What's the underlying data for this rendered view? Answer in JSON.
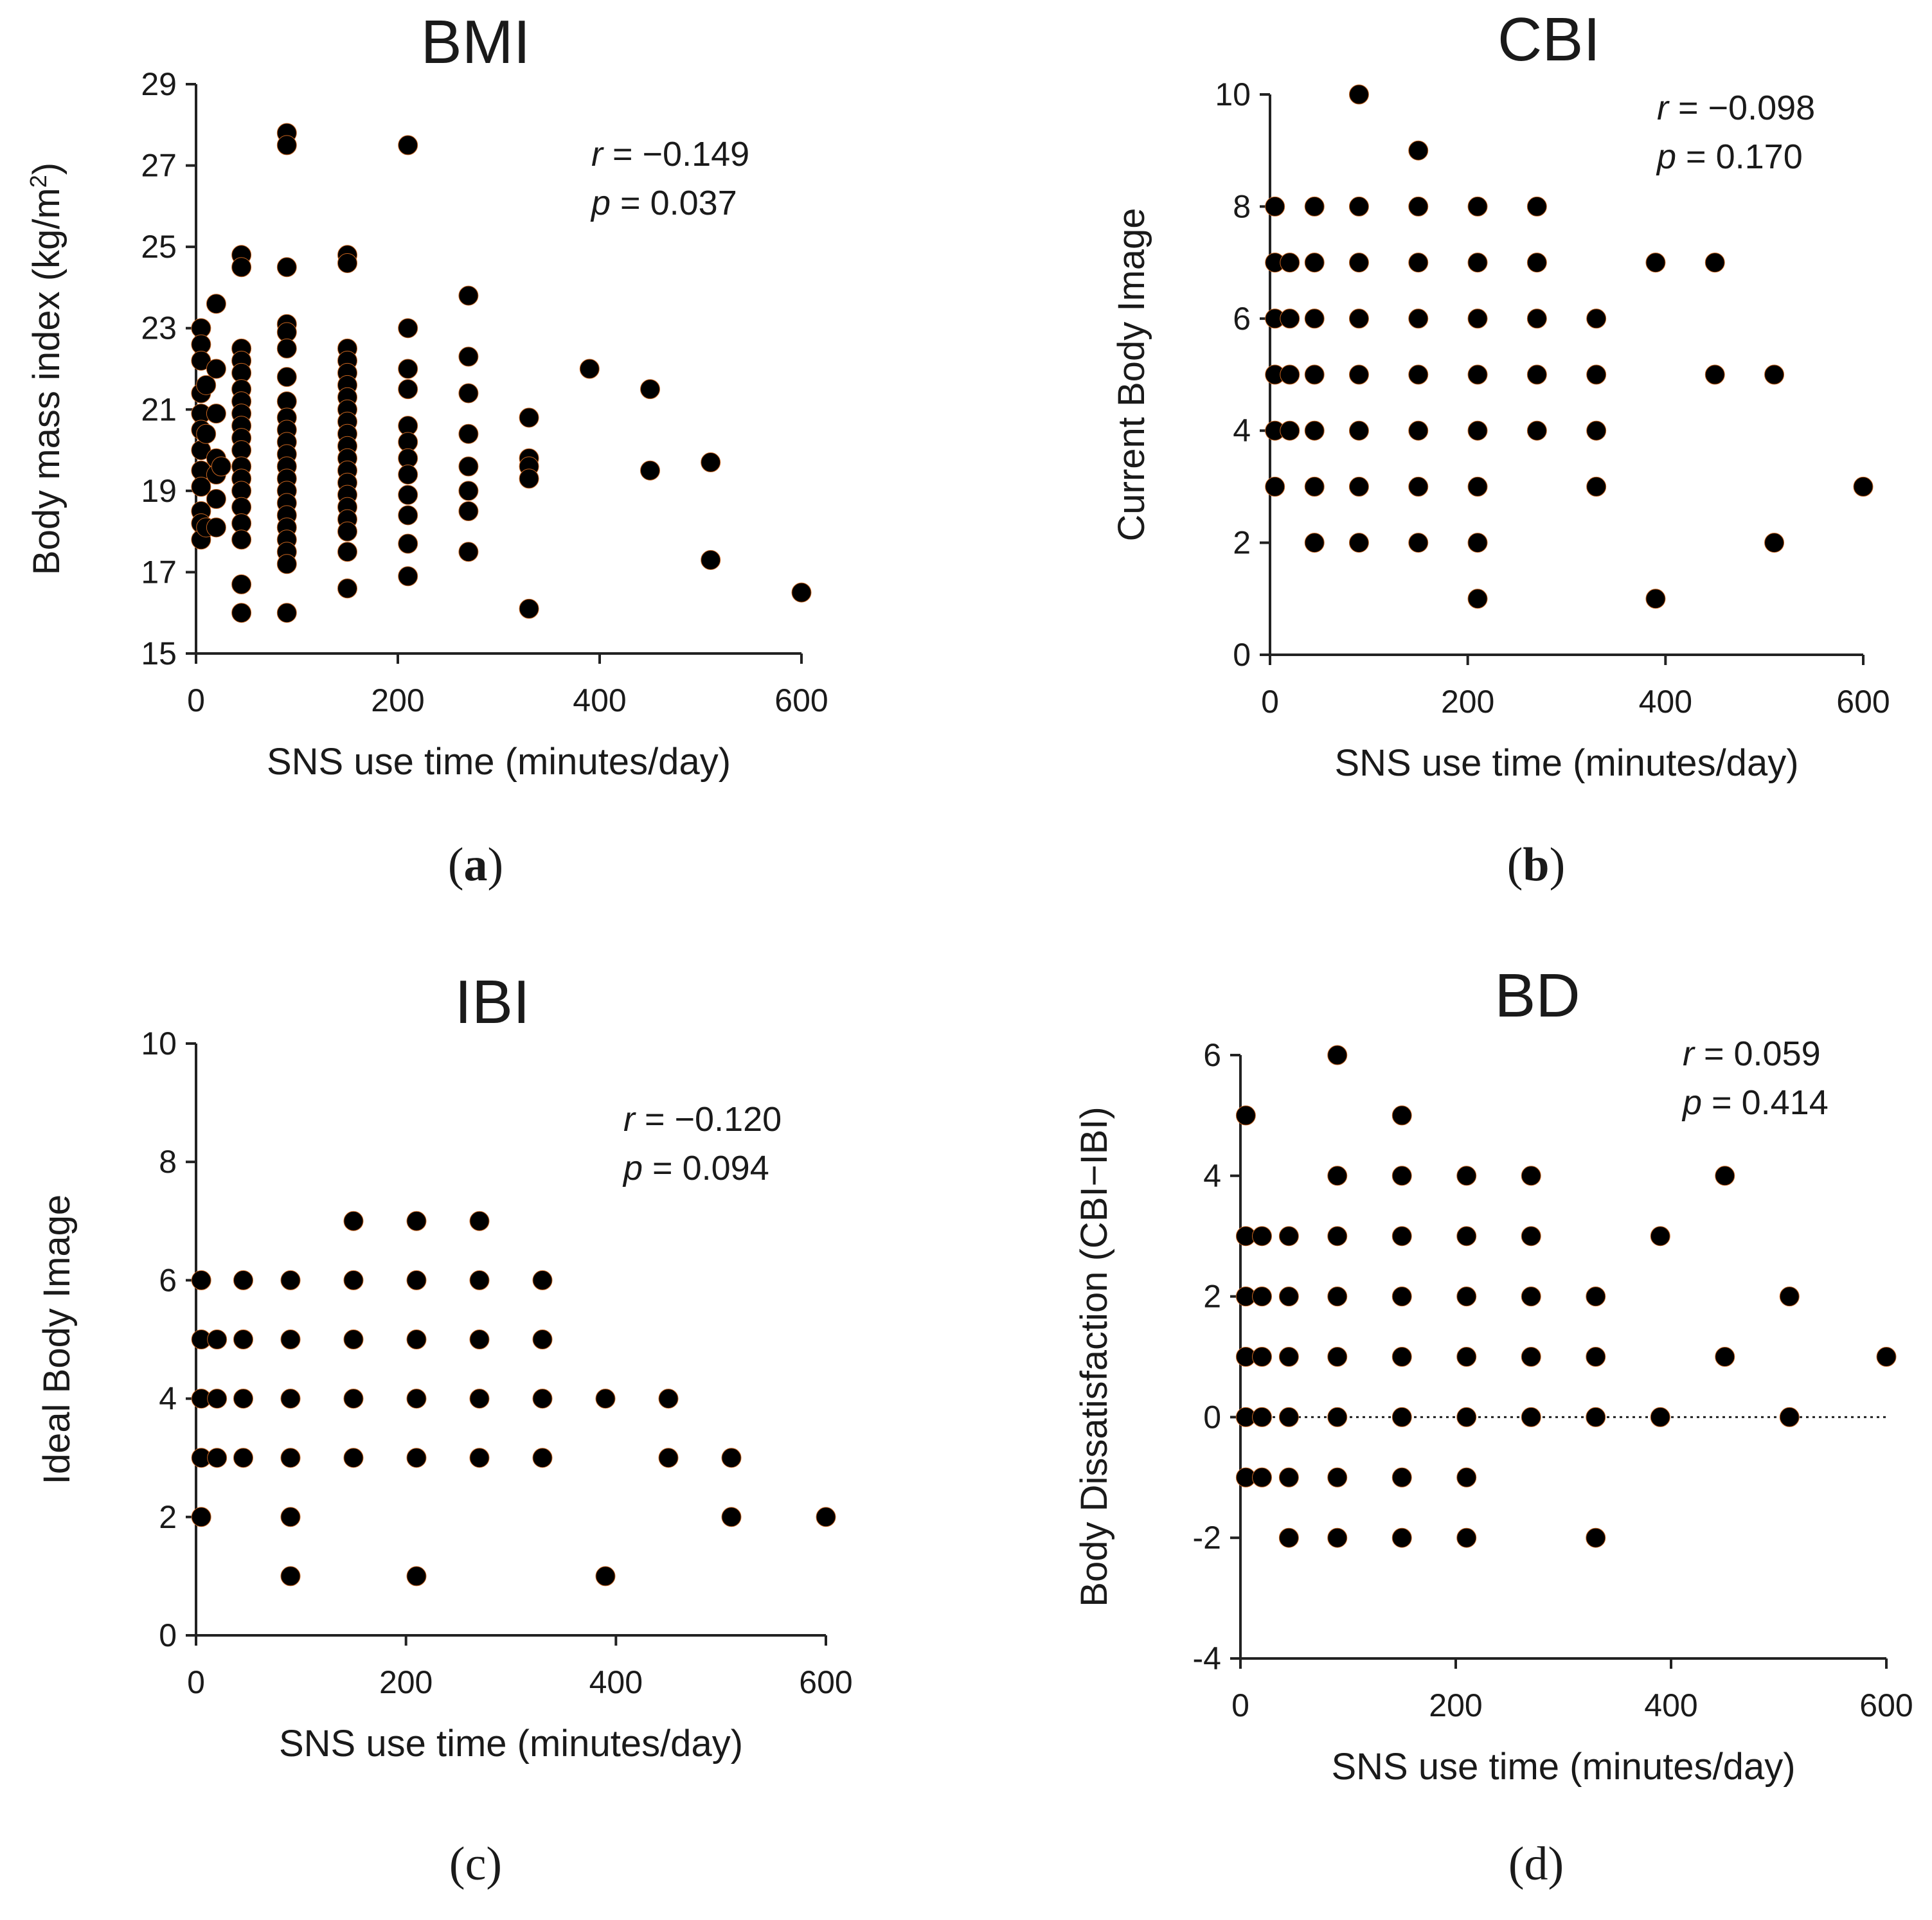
{
  "chart_data": [
    {
      "id": "a",
      "type": "scatter",
      "title": "BMI",
      "xlabel": "SNS use time (minutes/day)",
      "ylabel_parts": [
        "Body mass index (kg/m",
        "2",
        ")"
      ],
      "xlim": [
        0,
        600
      ],
      "ylim": [
        15,
        29
      ],
      "xticks": [
        0,
        200,
        400,
        600
      ],
      "yticks": [
        15,
        17,
        19,
        21,
        23,
        25,
        27,
        29
      ],
      "stat": {
        "r_symbol": "r",
        "r_value": " = −0.149",
        "p_symbol": "p",
        "p_value": " = 0.037"
      },
      "caption": "(a)",
      "caption_letter": "a",
      "zero_line": false,
      "points": [
        [
          5,
          23.0
        ],
        [
          5,
          22.6
        ],
        [
          5,
          22.2
        ],
        [
          5,
          21.4
        ],
        [
          5,
          20.9
        ],
        [
          5,
          20.5
        ],
        [
          5,
          20.0
        ],
        [
          5,
          19.5
        ],
        [
          5,
          19.1
        ],
        [
          5,
          18.5
        ],
        [
          5,
          18.2
        ],
        [
          5,
          17.8
        ],
        [
          10,
          21.6
        ],
        [
          10,
          20.4
        ],
        [
          10,
          18.1
        ],
        [
          20,
          23.6
        ],
        [
          20,
          22.0
        ],
        [
          20,
          20.9
        ],
        [
          20,
          19.8
        ],
        [
          20,
          19.4
        ],
        [
          20,
          18.8
        ],
        [
          20,
          18.1
        ],
        [
          25,
          19.6
        ],
        [
          45,
          24.8
        ],
        [
          45,
          24.5
        ],
        [
          45,
          22.5
        ],
        [
          45,
          22.2
        ],
        [
          45,
          21.9
        ],
        [
          45,
          21.5
        ],
        [
          45,
          21.2
        ],
        [
          45,
          20.9
        ],
        [
          45,
          20.6
        ],
        [
          45,
          20.3
        ],
        [
          45,
          20.0
        ],
        [
          45,
          19.6
        ],
        [
          45,
          19.3
        ],
        [
          45,
          19.0
        ],
        [
          45,
          18.6
        ],
        [
          45,
          18.2
        ],
        [
          45,
          17.8
        ],
        [
          45,
          16.7
        ],
        [
          45,
          16.0
        ],
        [
          90,
          27.8
        ],
        [
          90,
          27.5
        ],
        [
          90,
          24.5
        ],
        [
          90,
          23.1
        ],
        [
          90,
          22.9
        ],
        [
          90,
          22.5
        ],
        [
          90,
          21.8
        ],
        [
          90,
          21.2
        ],
        [
          90,
          20.8
        ],
        [
          90,
          20.5
        ],
        [
          90,
          20.2
        ],
        [
          90,
          19.9
        ],
        [
          90,
          19.6
        ],
        [
          90,
          19.3
        ],
        [
          90,
          19.0
        ],
        [
          90,
          18.7
        ],
        [
          90,
          18.4
        ],
        [
          90,
          18.1
        ],
        [
          90,
          17.8
        ],
        [
          90,
          17.5
        ],
        [
          90,
          17.2
        ],
        [
          90,
          16.0
        ],
        [
          150,
          24.8
        ],
        [
          150,
          24.6
        ],
        [
          150,
          22.5
        ],
        [
          150,
          22.2
        ],
        [
          150,
          21.9
        ],
        [
          150,
          21.6
        ],
        [
          150,
          21.3
        ],
        [
          150,
          21.0
        ],
        [
          150,
          20.7
        ],
        [
          150,
          20.4
        ],
        [
          150,
          20.1
        ],
        [
          150,
          19.8
        ],
        [
          150,
          19.5
        ],
        [
          150,
          19.2
        ],
        [
          150,
          18.9
        ],
        [
          150,
          18.6
        ],
        [
          150,
          18.3
        ],
        [
          150,
          18.0
        ],
        [
          150,
          17.5
        ],
        [
          150,
          16.6
        ],
        [
          210,
          27.5
        ],
        [
          210,
          23.0
        ],
        [
          210,
          22.0
        ],
        [
          210,
          21.5
        ],
        [
          210,
          20.6
        ],
        [
          210,
          20.2
        ],
        [
          210,
          19.8
        ],
        [
          210,
          19.4
        ],
        [
          210,
          18.9
        ],
        [
          210,
          18.4
        ],
        [
          210,
          17.7
        ],
        [
          210,
          16.9
        ],
        [
          270,
          23.8
        ],
        [
          270,
          22.3
        ],
        [
          270,
          21.4
        ],
        [
          270,
          20.4
        ],
        [
          270,
          19.6
        ],
        [
          270,
          19.0
        ],
        [
          270,
          18.5
        ],
        [
          270,
          17.5
        ],
        [
          330,
          20.8
        ],
        [
          330,
          19.8
        ],
        [
          330,
          19.6
        ],
        [
          330,
          19.3
        ],
        [
          330,
          16.1
        ],
        [
          390,
          22.0
        ],
        [
          450,
          21.5
        ],
        [
          450,
          19.5
        ],
        [
          510,
          19.7
        ],
        [
          510,
          17.3
        ],
        [
          600,
          16.5
        ]
      ]
    },
    {
      "id": "b",
      "type": "scatter",
      "title": "CBI",
      "xlabel": "SNS use time (minutes/day)",
      "ylabel_parts": [
        "Current Body Image"
      ],
      "xlim": [
        0,
        600
      ],
      "ylim": [
        0,
        10
      ],
      "xticks": [
        0,
        200,
        400,
        600
      ],
      "yticks": [
        0,
        2,
        4,
        6,
        8,
        10
      ],
      "stat": {
        "r_symbol": "r",
        "r_value": " = −0.098",
        "p_symbol": "p",
        "p_value": " = 0.170"
      },
      "caption": "(b)",
      "caption_letter": "b",
      "zero_line": false,
      "points": [
        [
          5,
          8
        ],
        [
          5,
          7
        ],
        [
          5,
          6
        ],
        [
          5,
          5
        ],
        [
          5,
          4
        ],
        [
          5,
          3
        ],
        [
          20,
          7
        ],
        [
          20,
          6
        ],
        [
          20,
          5
        ],
        [
          20,
          4
        ],
        [
          45,
          8
        ],
        [
          45,
          7
        ],
        [
          45,
          6
        ],
        [
          45,
          5
        ],
        [
          45,
          4
        ],
        [
          45,
          3
        ],
        [
          45,
          2
        ],
        [
          90,
          10
        ],
        [
          90,
          8
        ],
        [
          90,
          7
        ],
        [
          90,
          6
        ],
        [
          90,
          5
        ],
        [
          90,
          4
        ],
        [
          90,
          3
        ],
        [
          90,
          2
        ],
        [
          150,
          9
        ],
        [
          150,
          8
        ],
        [
          150,
          7
        ],
        [
          150,
          6
        ],
        [
          150,
          5
        ],
        [
          150,
          4
        ],
        [
          150,
          3
        ],
        [
          150,
          2
        ],
        [
          210,
          8
        ],
        [
          210,
          7
        ],
        [
          210,
          6
        ],
        [
          210,
          5
        ],
        [
          210,
          4
        ],
        [
          210,
          3
        ],
        [
          210,
          2
        ],
        [
          210,
          1
        ],
        [
          270,
          8
        ],
        [
          270,
          7
        ],
        [
          270,
          6
        ],
        [
          270,
          5
        ],
        [
          270,
          4
        ],
        [
          330,
          6
        ],
        [
          330,
          5
        ],
        [
          330,
          4
        ],
        [
          330,
          3
        ],
        [
          390,
          7
        ],
        [
          390,
          1
        ],
        [
          450,
          7
        ],
        [
          450,
          5
        ],
        [
          510,
          5
        ],
        [
          510,
          2
        ],
        [
          600,
          3
        ]
      ]
    },
    {
      "id": "c",
      "type": "scatter",
      "title": "IBI",
      "xlabel": "SNS use time (minutes/day)",
      "ylabel_parts": [
        "Ideal Body Image"
      ],
      "xlim": [
        0,
        600
      ],
      "ylim": [
        0,
        10
      ],
      "xticks": [
        0,
        200,
        400,
        600
      ],
      "yticks": [
        0,
        2,
        4,
        6,
        8,
        10
      ],
      "stat": {
        "r_symbol": "r",
        "r_value": " = −0.120",
        "p_symbol": "p",
        "p_value": " = 0.094"
      },
      "caption": "(c)",
      "caption_letter": "c",
      "zero_line": false,
      "points": [
        [
          5,
          6
        ],
        [
          5,
          5
        ],
        [
          5,
          4
        ],
        [
          5,
          3
        ],
        [
          5,
          2
        ],
        [
          20,
          5
        ],
        [
          20,
          4
        ],
        [
          20,
          3
        ],
        [
          45,
          6
        ],
        [
          45,
          5
        ],
        [
          45,
          4
        ],
        [
          45,
          3
        ],
        [
          90,
          6
        ],
        [
          90,
          5
        ],
        [
          90,
          4
        ],
        [
          90,
          3
        ],
        [
          90,
          2
        ],
        [
          90,
          1
        ],
        [
          150,
          7
        ],
        [
          150,
          6
        ],
        [
          150,
          5
        ],
        [
          150,
          4
        ],
        [
          150,
          3
        ],
        [
          210,
          7
        ],
        [
          210,
          6
        ],
        [
          210,
          5
        ],
        [
          210,
          4
        ],
        [
          210,
          3
        ],
        [
          210,
          1
        ],
        [
          270,
          7
        ],
        [
          270,
          6
        ],
        [
          270,
          5
        ],
        [
          270,
          4
        ],
        [
          270,
          3
        ],
        [
          330,
          6
        ],
        [
          330,
          5
        ],
        [
          330,
          4
        ],
        [
          330,
          3
        ],
        [
          390,
          4
        ],
        [
          390,
          1
        ],
        [
          450,
          4
        ],
        [
          450,
          3
        ],
        [
          510,
          3
        ],
        [
          510,
          2
        ],
        [
          600,
          2
        ]
      ]
    },
    {
      "id": "d",
      "type": "scatter",
      "title": "BD",
      "xlabel": "SNS use time (minutes/day)",
      "ylabel_parts": [
        "Body Dissatisfaction (CBI−IBI)"
      ],
      "xlim": [
        0,
        600
      ],
      "ylim": [
        -4,
        6
      ],
      "xticks": [
        0,
        200,
        400,
        600
      ],
      "yticks": [
        -4,
        -2,
        0,
        2,
        4,
        6
      ],
      "stat": {
        "r_symbol": "r",
        "r_value": " = 0.059",
        "p_symbol": "p",
        "p_value": " = 0.414"
      },
      "caption": "(d)",
      "caption_letter": "d",
      "zero_line": true,
      "points": [
        [
          5,
          5
        ],
        [
          5,
          3
        ],
        [
          5,
          2
        ],
        [
          5,
          1
        ],
        [
          5,
          0
        ],
        [
          5,
          -1
        ],
        [
          20,
          3
        ],
        [
          20,
          2
        ],
        [
          20,
          1
        ],
        [
          20,
          0
        ],
        [
          20,
          -1
        ],
        [
          45,
          3
        ],
        [
          45,
          2
        ],
        [
          45,
          1
        ],
        [
          45,
          0
        ],
        [
          45,
          -1
        ],
        [
          45,
          -2
        ],
        [
          90,
          6
        ],
        [
          90,
          4
        ],
        [
          90,
          3
        ],
        [
          90,
          2
        ],
        [
          90,
          1
        ],
        [
          90,
          0
        ],
        [
          90,
          -1
        ],
        [
          90,
          -2
        ],
        [
          150,
          5
        ],
        [
          150,
          4
        ],
        [
          150,
          3
        ],
        [
          150,
          2
        ],
        [
          150,
          1
        ],
        [
          150,
          0
        ],
        [
          150,
          -1
        ],
        [
          150,
          -2
        ],
        [
          210,
          4
        ],
        [
          210,
          3
        ],
        [
          210,
          2
        ],
        [
          210,
          1
        ],
        [
          210,
          0
        ],
        [
          210,
          -1
        ],
        [
          210,
          -2
        ],
        [
          270,
          4
        ],
        [
          270,
          3
        ],
        [
          270,
          2
        ],
        [
          270,
          1
        ],
        [
          270,
          0
        ],
        [
          330,
          2
        ],
        [
          330,
          1
        ],
        [
          330,
          0
        ],
        [
          330,
          -2
        ],
        [
          390,
          3
        ],
        [
          390,
          0
        ],
        [
          450,
          4
        ],
        [
          450,
          1
        ],
        [
          510,
          2
        ],
        [
          510,
          0
        ],
        [
          600,
          1
        ]
      ]
    }
  ]
}
